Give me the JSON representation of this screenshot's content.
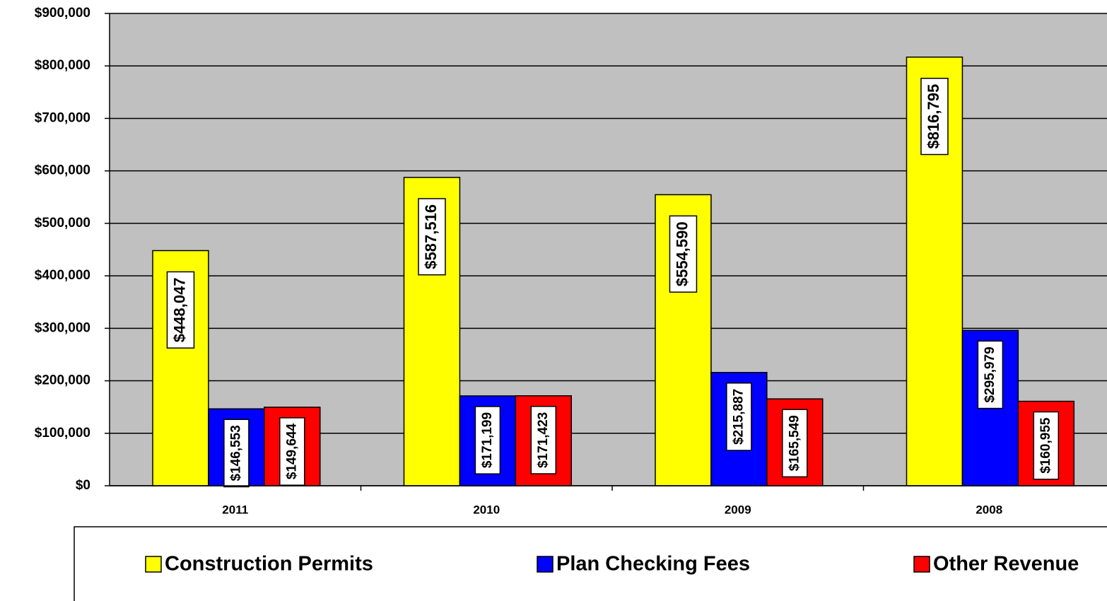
{
  "chart_data": {
    "type": "bar",
    "categories": [
      "2011",
      "2010",
      "2009",
      "2008"
    ],
    "series": [
      {
        "name": "Construction Permits",
        "color": "#ffff00",
        "values": [
          448047,
          587516,
          554590,
          816795
        ],
        "value_labels": [
          "$448,047",
          "$587,516",
          "$554,590",
          "$816,795"
        ]
      },
      {
        "name": "Plan Checking Fees",
        "color": "#0000ff",
        "values": [
          146553,
          171199,
          215887,
          295979
        ],
        "value_labels": [
          "$146,553",
          "$171,199",
          "$215,887",
          "$295,979"
        ]
      },
      {
        "name": "Other Revenue",
        "color": "#ff0000",
        "values": [
          149644,
          171423,
          165549,
          160955
        ],
        "value_labels": [
          "$149,644",
          "$171,423",
          "$165,549",
          "$160,955"
        ]
      }
    ],
    "ylim": [
      0,
      900000
    ],
    "yticks": [
      {
        "value": 0,
        "label": "$0"
      },
      {
        "value": 100000,
        "label": "$100,000"
      },
      {
        "value": 200000,
        "label": "$200,000"
      },
      {
        "value": 300000,
        "label": "$300,000"
      },
      {
        "value": 400000,
        "label": "$400,000"
      },
      {
        "value": 500000,
        "label": "$500,000"
      },
      {
        "value": 600000,
        "label": "$600,000"
      },
      {
        "value": 700000,
        "label": "$700,000"
      },
      {
        "value": 800000,
        "label": "$800,000"
      },
      {
        "value": 900000,
        "label": "$900,000"
      }
    ],
    "grid": true,
    "legend": "bottom"
  }
}
